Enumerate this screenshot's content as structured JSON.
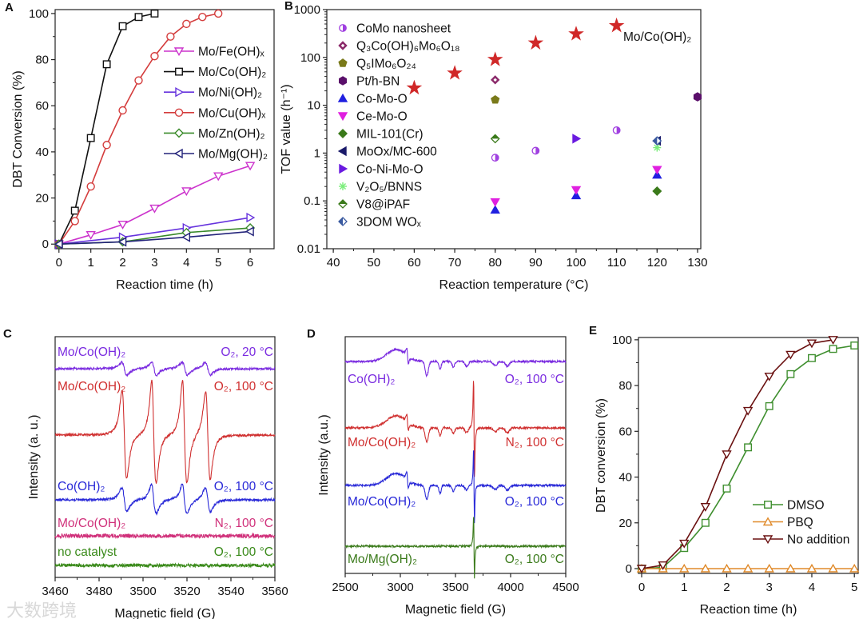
{
  "watermark": "大数跨境",
  "chart_data": [
    {
      "panel_label": "A",
      "type": "line",
      "xlabel": "Reaction time (h)",
      "ylabel": "DBT Conversion (%)",
      "xlim": [
        0,
        6
      ],
      "ylim": [
        0,
        100
      ],
      "xticks": [
        0,
        1,
        2,
        3,
        4,
        5,
        6
      ],
      "yticks": [
        0,
        20,
        40,
        60,
        80,
        100
      ],
      "legend": "right",
      "series": [
        {
          "name": "Mo/Fe(OH)ₓ",
          "color": "#cc33cc",
          "marker": "tri-down",
          "x": [
            0,
            1,
            2,
            3,
            4,
            5,
            6
          ],
          "y": [
            0,
            4,
            8.5,
            15.5,
            23,
            29.5,
            34
          ]
        },
        {
          "name": "Mo/Co(OH)₂",
          "color": "#111111",
          "marker": "square",
          "x": [
            0,
            0.5,
            1,
            1.5,
            2,
            2.5,
            3
          ],
          "y": [
            0,
            14.5,
            46,
            78,
            94.5,
            98.5,
            100
          ]
        },
        {
          "name": "Mo/Ni(OH)₂",
          "color": "#6633dd",
          "marker": "tri-right",
          "x": [
            0,
            2,
            4,
            6
          ],
          "y": [
            0,
            3,
            7,
            11.5
          ]
        },
        {
          "name": "Mo/Cu(OH)ₓ",
          "color": "#d43c3c",
          "marker": "circle",
          "x": [
            0,
            0.5,
            1,
            1.5,
            2,
            2.5,
            3,
            3.5,
            4,
            4.5,
            5
          ],
          "y": [
            0,
            10,
            25,
            43,
            58,
            71,
            81.5,
            90,
            95.5,
            98.5,
            100
          ]
        },
        {
          "name": "Mo/Zn(OH)₂",
          "color": "#3a8a2a",
          "marker": "diamond",
          "x": [
            0,
            2,
            4,
            6
          ],
          "y": [
            0,
            1,
            5,
            7
          ]
        },
        {
          "name": "Mo/Mg(OH)₂",
          "color": "#23237a",
          "marker": "tri-left",
          "x": [
            0,
            2,
            4,
            6
          ],
          "y": [
            0,
            1,
            3,
            5.5
          ]
        }
      ]
    },
    {
      "panel_label": "B",
      "type": "scatter",
      "xlabel": "Reaction temperature (°C)",
      "ylabel": "TOF value (h⁻¹)",
      "xlim": [
        40,
        130
      ],
      "ylim": [
        0.01,
        1000
      ],
      "yscale": "log",
      "xticks": [
        40,
        50,
        60,
        70,
        80,
        90,
        100,
        110,
        120,
        130
      ],
      "yticks": [
        0.01,
        0.1,
        1,
        10,
        100,
        1000
      ],
      "legend": "top-left",
      "annotation": "Mo/Co(OH)₂",
      "highlight": {
        "name": "Mo/Co(OH)₂",
        "color": "#d02828",
        "marker": "star",
        "x": [
          60,
          70,
          80,
          90,
          100,
          110
        ],
        "y": [
          23,
          47,
          90,
          200,
          310,
          460
        ]
      },
      "series": [
        {
          "name": "CoMo nanosheet",
          "color": "#a040e0",
          "marker": "half-circle",
          "x": [
            80,
            90,
            110
          ],
          "y": [
            0.8,
            1.12,
            3
          ]
        },
        {
          "name": "Q₃Co(OH)₆Mo₆O₁₈",
          "color": "#8b2a6a",
          "marker": "diamond-dot",
          "x": [
            80
          ],
          "y": [
            34
          ]
        },
        {
          "name": "Q₅IMo₆O₂₄",
          "color": "#7a7a1a",
          "marker": "pentagon",
          "x": [
            80
          ],
          "y": [
            13
          ]
        },
        {
          "name": "Pt/h-BN",
          "color": "#5a0f6a",
          "marker": "hexagon",
          "x": [
            130
          ],
          "y": [
            15
          ]
        },
        {
          "name": "Co-Mo-O",
          "color": "#2020e0",
          "marker": "tri-up",
          "x": [
            80,
            100,
            120
          ],
          "y": [
            0.065,
            0.13,
            0.35
          ]
        },
        {
          "name": "Ce-Mo-O",
          "color": "#e020e0",
          "marker": "tri-down",
          "x": [
            80,
            100,
            120
          ],
          "y": [
            0.095,
            0.17,
            0.45
          ]
        },
        {
          "name": "MIL-101(Cr)",
          "color": "#3a7a1a",
          "marker": "diamond",
          "x": [
            120
          ],
          "y": [
            0.16
          ]
        },
        {
          "name": "MoOx/MC-600",
          "color": "#1a1a6a",
          "marker": "tri-left",
          "x": [
            120
          ],
          "y": [
            1.8
          ]
        },
        {
          "name": "Co-Ni-Mo-O",
          "color": "#6a1ae0",
          "marker": "tri-right",
          "x": [
            100
          ],
          "y": [
            2
          ]
        },
        {
          "name": "V₂O₅/BNNS",
          "color": "#7aee7a",
          "marker": "asterisk",
          "x": [
            120
          ],
          "y": [
            1.3
          ]
        },
        {
          "name": "V8@iPAF",
          "color": "#3a7a1a",
          "marker": "half-diamond-top",
          "x": [
            80
          ],
          "y": [
            2
          ]
        },
        {
          "name": "3DOM WOₓ",
          "color": "#3a5aa0",
          "marker": "half-diamond-left",
          "x": [
            120
          ],
          "y": [
            1.8
          ]
        }
      ]
    },
    {
      "panel_label": "C",
      "type": "line",
      "xlabel": "Magnetic field (G)",
      "ylabel": "Intensity (a. u.)",
      "xlim": [
        3460,
        3560
      ],
      "xticks": [
        3460,
        3480,
        3500,
        3520,
        3540,
        3560
      ],
      "spectra": [
        {
          "sample": "Mo/Co(OH)₂",
          "condition": "O₂, 20 °C",
          "color": "#7a2be0",
          "noise": 1.4,
          "features": [
            {
              "type": "deriv",
              "center": 3491.5,
              "width": 2,
              "amp": 8
            },
            {
              "type": "deriv",
              "center": 3505,
              "width": 2,
              "amp": 8
            },
            {
              "type": "deriv",
              "center": 3519,
              "width": 2,
              "amp": 8
            },
            {
              "type": "deriv",
              "center": 3529.5,
              "width": 2,
              "amp": 8
            }
          ]
        },
        {
          "sample": "Mo/Co(OH)₂",
          "condition": "O₂, 100 °C",
          "color": "#d03030",
          "noise": 1.4,
          "features": [
            {
              "type": "deriv",
              "center": 3491.5,
              "width": 1.8,
              "amp": 55
            },
            {
              "type": "deriv",
              "center": 3505,
              "width": 1.8,
              "amp": 55
            },
            {
              "type": "deriv",
              "center": 3519,
              "width": 1.8,
              "amp": 55
            },
            {
              "type": "deriv",
              "center": 3529.5,
              "width": 1.8,
              "amp": 55
            },
            {
              "type": "deriv",
              "center": 3504.5,
              "width": 0.9,
              "amp": 14
            },
            {
              "type": "deriv",
              "center": 3518.5,
              "width": 0.9,
              "amp": 14
            }
          ]
        },
        {
          "sample": "Co(OH)₂",
          "condition": "O₂, 100 °C",
          "color": "#2a2ad8",
          "noise": 1.4,
          "features": [
            {
              "type": "deriv",
              "center": 3491.5,
              "width": 2,
              "amp": 15
            },
            {
              "type": "deriv",
              "center": 3505,
              "width": 2,
              "amp": 15
            },
            {
              "type": "deriv",
              "center": 3519,
              "width": 2,
              "amp": 15
            },
            {
              "type": "deriv",
              "center": 3529.5,
              "width": 2,
              "amp": 15
            },
            {
              "type": "deriv",
              "center": 3504.5,
              "width": 1,
              "amp": 5
            },
            {
              "type": "deriv",
              "center": 3518.5,
              "width": 1,
              "amp": 5
            }
          ]
        },
        {
          "sample": "Mo/Co(OH)₂",
          "condition": "N₂, 100 °C",
          "color": "#d0307a",
          "noise": 2.4,
          "features": []
        },
        {
          "sample": "no catalyst",
          "condition": "O₂, 100 °C",
          "color": "#3a8a1a",
          "noise": 2.0,
          "features": []
        }
      ]
    },
    {
      "panel_label": "D",
      "type": "line",
      "xlabel": "Magnetic field (G)",
      "ylabel": "Intensity (a.u.)",
      "xlim": [
        2500,
        4500
      ],
      "xticks": [
        2500,
        3000,
        3500,
        4000,
        4500
      ],
      "spectra": [
        {
          "sample": "Co(OH)₂",
          "condition": "O₂, 100 °C",
          "color": "#7a2be0",
          "noise": 1.2,
          "features": [
            {
              "type": "gauss",
              "center": 2960,
              "width": 85,
              "amp": 15
            },
            {
              "type": "deriv",
              "center": 3065,
              "width": 12,
              "amp": 9
            },
            {
              "type": "gauss",
              "center": 3240,
              "width": 14,
              "amp": -18
            },
            {
              "type": "gauss",
              "center": 3360,
              "width": 10,
              "amp": -10
            },
            {
              "type": "gauss",
              "center": 3480,
              "width": 12,
              "amp": -7
            },
            {
              "type": "gauss",
              "center": 3600,
              "width": 15,
              "amp": -6
            },
            {
              "type": "gauss",
              "center": 3860,
              "width": 18,
              "amp": -5
            },
            {
              "type": "gauss",
              "center": 3970,
              "width": 18,
              "amp": -6
            }
          ]
        },
        {
          "sample": "Mo/Co(OH)₂",
          "condition": "N₂, 100 °C",
          "color": "#d03030",
          "noise": 1.2,
          "features": [
            {
              "type": "gauss",
              "center": 2960,
              "width": 85,
              "amp": 15
            },
            {
              "type": "deriv",
              "center": 3065,
              "width": 12,
              "amp": 9
            },
            {
              "type": "gauss",
              "center": 3240,
              "width": 14,
              "amp": -18
            },
            {
              "type": "gauss",
              "center": 3360,
              "width": 10,
              "amp": -10
            },
            {
              "type": "gauss",
              "center": 3480,
              "width": 12,
              "amp": -7
            },
            {
              "type": "gauss",
              "center": 3600,
              "width": 15,
              "amp": -6
            },
            {
              "type": "deriv",
              "center": 3668,
              "width": 7,
              "amp": 62
            },
            {
              "type": "gauss",
              "center": 3860,
              "width": 18,
              "amp": -5
            },
            {
              "type": "gauss",
              "center": 3970,
              "width": 18,
              "amp": -6
            }
          ]
        },
        {
          "sample": "Mo/Co(OH)₂",
          "condition": "O₂, 100 °C",
          "color": "#2a2ad8",
          "noise": 1.2,
          "features": [
            {
              "type": "gauss",
              "center": 2960,
              "width": 85,
              "amp": 15
            },
            {
              "type": "deriv",
              "center": 3065,
              "width": 12,
              "amp": 9
            },
            {
              "type": "gauss",
              "center": 3240,
              "width": 14,
              "amp": -18
            },
            {
              "type": "gauss",
              "center": 3360,
              "width": 10,
              "amp": -10
            },
            {
              "type": "gauss",
              "center": 3480,
              "width": 12,
              "amp": -7
            },
            {
              "type": "gauss",
              "center": 3600,
              "width": 15,
              "amp": -6
            },
            {
              "type": "deriv",
              "center": 3668,
              "width": 6,
              "amp": 48
            },
            {
              "type": "gauss",
              "center": 3860,
              "width": 18,
              "amp": -5
            },
            {
              "type": "gauss",
              "center": 3970,
              "width": 18,
              "amp": -6
            }
          ]
        },
        {
          "sample": "Mo/Mg(OH)₂",
          "condition": "O₂, 100 °C",
          "color": "#3a7a1a",
          "noise": 1.2,
          "features": [
            {
              "type": "deriv",
              "center": 3668,
              "width": 6,
              "amp": 40
            }
          ]
        }
      ]
    },
    {
      "panel_label": "E",
      "type": "line",
      "xlabel": "Reaction time (h)",
      "ylabel": "DBT conversion (%)",
      "xlim": [
        0,
        5
      ],
      "ylim": [
        0,
        100
      ],
      "xticks": [
        0,
        1,
        2,
        3,
        4,
        5
      ],
      "yticks": [
        0,
        20,
        40,
        60,
        80,
        100
      ],
      "legend": "bottom-right",
      "series": [
        {
          "name": "DMSO",
          "color": "#3f8f2f",
          "marker": "square",
          "x": [
            0,
            0.5,
            1,
            1.5,
            2,
            2.5,
            3,
            3.5,
            4,
            4.5,
            5
          ],
          "y": [
            0,
            0.5,
            9,
            20,
            35,
            53,
            71,
            85,
            92,
            96,
            97.5
          ]
        },
        {
          "name": "PBQ",
          "color": "#e08a2a",
          "marker": "tri-up",
          "x": [
            0,
            0.5,
            1,
            1.5,
            2,
            2.5,
            3,
            3.5,
            4,
            4.5,
            5
          ],
          "y": [
            0,
            0,
            0,
            0,
            0,
            0,
            0,
            0,
            0,
            0,
            0
          ]
        },
        {
          "name": "No addition",
          "color": "#6a1010",
          "marker": "tri-down",
          "x": [
            0,
            0.5,
            1,
            1.5,
            2,
            2.5,
            3,
            3.5,
            4,
            4.5
          ],
          "y": [
            0,
            1.5,
            11,
            27,
            50,
            69,
            84,
            93.5,
            98.5,
            100
          ]
        }
      ]
    }
  ]
}
